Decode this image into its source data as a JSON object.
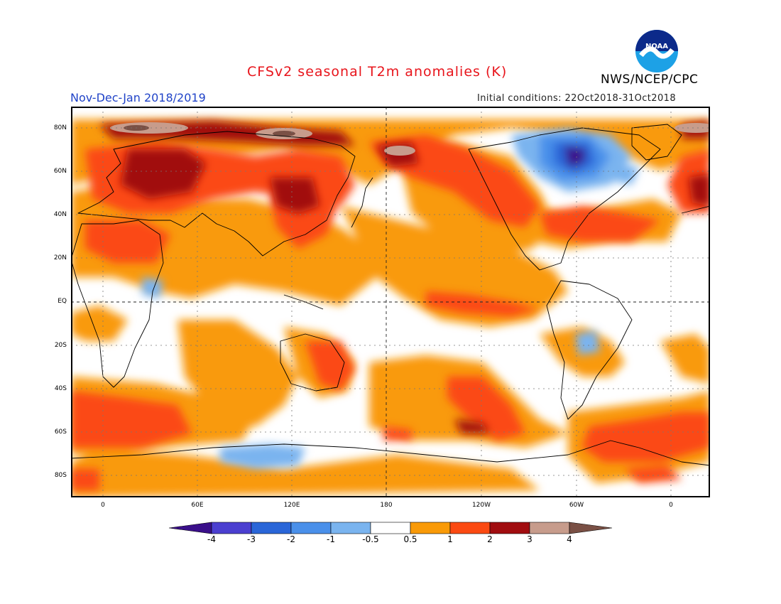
{
  "title": "CFSv2 seasonal T2m anomalies (K)",
  "period": "Nov-Dec-Jan 2018/2019",
  "initial_conditions": "Initial conditions: 22Oct2018-31Oct2018",
  "organization": "NWS/NCEP/CPC",
  "logo": {
    "text": "NOAA",
    "icon": "noaa-logo"
  },
  "map": {
    "projection": "cylindrical equidistant",
    "lat_labels": [
      "80N",
      "60N",
      "40N",
      "20N",
      "EQ",
      "20S",
      "40S",
      "60S",
      "80S"
    ],
    "lon_labels": [
      "0",
      "60E",
      "120E",
      "180",
      "120W",
      "60W",
      "0"
    ],
    "lon_range": [
      "20W",
      "20E"
    ],
    "lat_range": [
      "90S",
      "90N"
    ],
    "grid": "dotted 20° lines, dashed equator and dateline"
  },
  "colorbar": {
    "labels": [
      "-4",
      "-3",
      "-2",
      "-1",
      "-0.5",
      "0.5",
      "1",
      "2",
      "3",
      "4"
    ],
    "colors": [
      "#3a0f8a",
      "#4b3fd0",
      "#2a66d8",
      "#4a90ea",
      "#7ab4ef",
      "#ffffff",
      "#f99a08",
      "#fb4a12",
      "#a10d10",
      "#c79c8c",
      "#7a5045"
    ]
  }
}
